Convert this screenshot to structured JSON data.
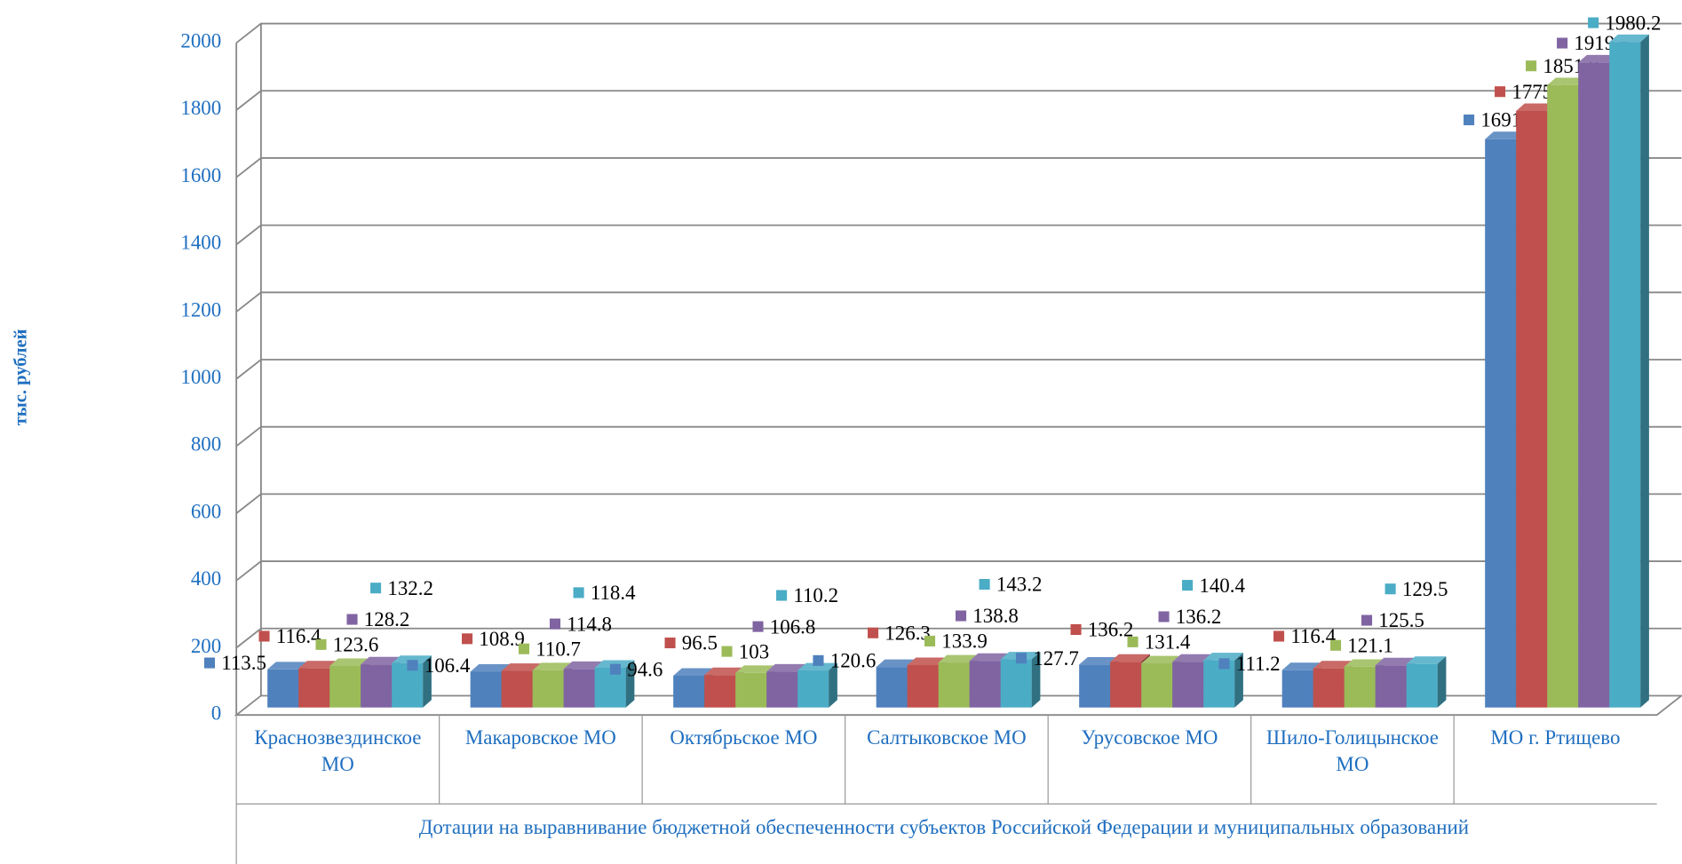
{
  "chart_data": {
    "type": "bar3d",
    "ylabel": "тыс. рублей",
    "xlabel": "Дотации  на выравнивание бюджетной обеспеченности  субъектов Российской Федерации и муниципальных образований",
    "categories": [
      "Краснозвездинское МО",
      "Макаровское МО",
      "Октябрьское МО",
      "Салтыковское МО",
      "Урусовское МО",
      "Шило-Голицынское МО",
      "МО г. Ртищево"
    ],
    "series": [
      {
        "color": "#4f81bd",
        "values": [
          113.5,
          106.4,
          94.6,
          120.6,
          127.7,
          111.2,
          1691.1
        ]
      },
      {
        "color": "#c0504d",
        "values": [
          116.4,
          108.9,
          96.5,
          126.3,
          136.2,
          116.4,
          1775.1
        ]
      },
      {
        "color": "#9bbb59",
        "values": [
          123.6,
          110.7,
          103,
          133.9,
          131.4,
          121.1,
          1851.8
        ]
      },
      {
        "color": "#8064a2",
        "values": [
          128.2,
          114.8,
          106.8,
          138.8,
          136.2,
          125.5,
          1919.6
        ]
      },
      {
        "color": "#4bacc6",
        "values": [
          132.2,
          118.4,
          110.2,
          143.2,
          140.4,
          129.5,
          1980.2
        ]
      }
    ],
    "ylim": [
      0,
      2000
    ],
    "yticks": [
      0,
      200,
      400,
      600,
      800,
      1000,
      1200,
      1400,
      1600,
      1800,
      2000
    ],
    "grid": true
  }
}
